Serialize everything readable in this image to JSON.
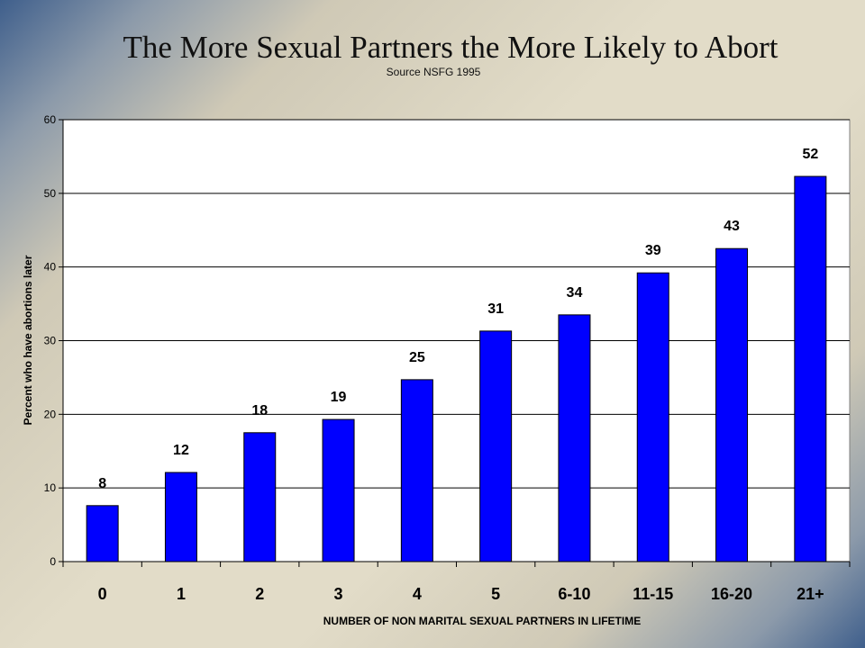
{
  "chart_data": {
    "type": "bar",
    "title": "The More Sexual Partners the More Likely to Abort",
    "subtitle": "Source NSFG 1995",
    "xlabel": "NUMBER OF NON MARITAL SEXUAL PARTNERS IN LIFETIME",
    "ylabel": "Percent who have abortions later",
    "categories": [
      "0",
      "1",
      "2",
      "3",
      "4",
      "5",
      "6-10",
      "11-15",
      "16-20",
      "21+"
    ],
    "values": [
      7.6,
      12.1,
      17.5,
      19.3,
      24.7,
      31.3,
      33.5,
      39.2,
      42.5,
      52.3
    ],
    "labels": [
      "8",
      "12",
      "18",
      "19",
      "25",
      "31",
      "34",
      "39",
      "43",
      "52"
    ],
    "ylim": [
      0,
      60
    ],
    "yticks": [
      0,
      10,
      20,
      30,
      40,
      50,
      60
    ],
    "grid": true,
    "legend": "none",
    "colors": {
      "bar": "#0000ff",
      "plot_background": "#ffffff",
      "gridline": "#000000",
      "text": "#000000"
    }
  }
}
